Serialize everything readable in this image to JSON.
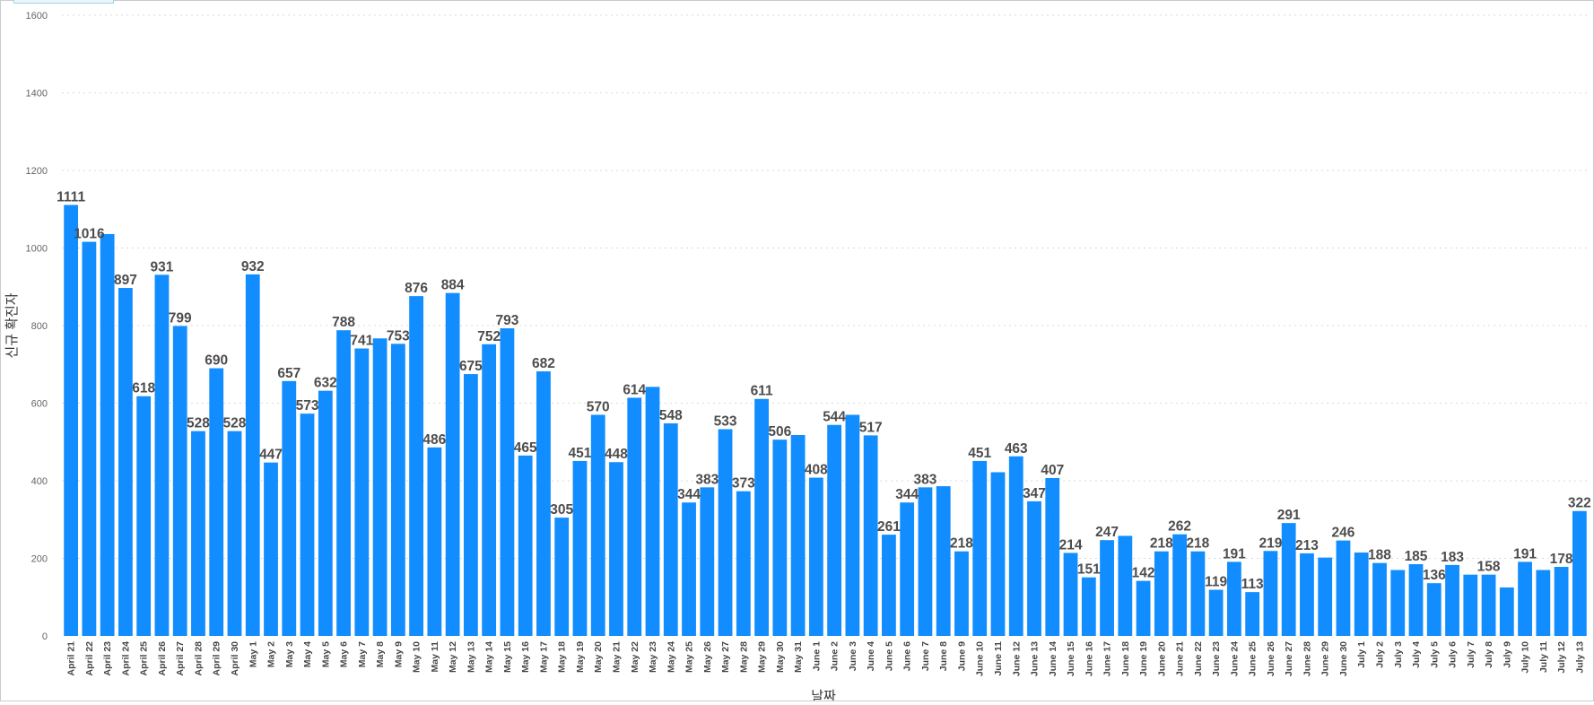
{
  "chart_data": {
    "type": "bar",
    "xlabel": "날짜",
    "ylabel": "신규 확진자",
    "ylim": [
      0,
      1600
    ],
    "yticks": [
      0,
      200,
      400,
      600,
      800,
      1000,
      1200,
      1400,
      1600
    ],
    "grid": true,
    "bar_color": "#118dff",
    "categories": [
      "April 21",
      "April 22",
      "April 23",
      "April 24",
      "April 25",
      "April 26",
      "April 27",
      "April 28",
      "April 29",
      "April 30",
      "May 1",
      "May 2",
      "May 3",
      "May 4",
      "May 5",
      "May 6",
      "May 7",
      "May 8",
      "May 9",
      "May 10",
      "May 11",
      "May 12",
      "May 13",
      "May 14",
      "May 15",
      "May 16",
      "May 17",
      "May 18",
      "May 19",
      "May 20",
      "May 21",
      "May 22",
      "May 23",
      "May 24",
      "May 25",
      "May 26",
      "May 27",
      "May 28",
      "May 29",
      "May 30",
      "May 31",
      "June 1",
      "June 2",
      "June 3",
      "June 4",
      "June 5",
      "June 6",
      "June 7",
      "June 8",
      "June 9",
      "June 10",
      "June 11",
      "June 12",
      "June 13",
      "June 14",
      "June 15",
      "June 16",
      "June 17",
      "June 18",
      "June 19",
      "June 20",
      "June 21",
      "June 22",
      "June 23",
      "June 24",
      "June 25",
      "June 26",
      "June 27",
      "June 28",
      "June 29",
      "June 30",
      "July 1",
      "July 2",
      "July 3",
      "July 4",
      "July 5",
      "July 6",
      "July 7",
      "July 8",
      "July 9",
      "July 10",
      "July 11",
      "July 12",
      "July 13"
    ],
    "values": [
      1111,
      1016,
      1036,
      897,
      618,
      931,
      799,
      528,
      690,
      528,
      932,
      447,
      657,
      573,
      632,
      788,
      741,
      767,
      753,
      876,
      486,
      884,
      675,
      752,
      793,
      465,
      682,
      305,
      451,
      570,
      448,
      614,
      642,
      548,
      344,
      383,
      533,
      373,
      611,
      506,
      518,
      408,
      544,
      570,
      517,
      261,
      344,
      383,
      386,
      218,
      451,
      422,
      463,
      347,
      407,
      214,
      151,
      247,
      258,
      142,
      218,
      262,
      218,
      119,
      191,
      113,
      219,
      291,
      213,
      202,
      246,
      215,
      188,
      170,
      185,
      136,
      183,
      158,
      158,
      125,
      191,
      170,
      178,
      322
    ],
    "labeled": [
      true,
      true,
      false,
      true,
      true,
      true,
      true,
      true,
      true,
      true,
      true,
      true,
      true,
      true,
      true,
      true,
      true,
      false,
      true,
      true,
      true,
      true,
      true,
      true,
      true,
      true,
      true,
      true,
      true,
      true,
      true,
      true,
      false,
      true,
      true,
      true,
      true,
      true,
      true,
      true,
      false,
      true,
      true,
      false,
      true,
      true,
      true,
      true,
      false,
      true,
      true,
      false,
      true,
      true,
      true,
      true,
      true,
      true,
      false,
      true,
      true,
      true,
      true,
      true,
      true,
      true,
      true,
      true,
      true,
      false,
      true,
      false,
      true,
      false,
      true,
      true,
      true,
      false,
      true,
      false,
      true,
      false,
      true,
      true
    ]
  }
}
